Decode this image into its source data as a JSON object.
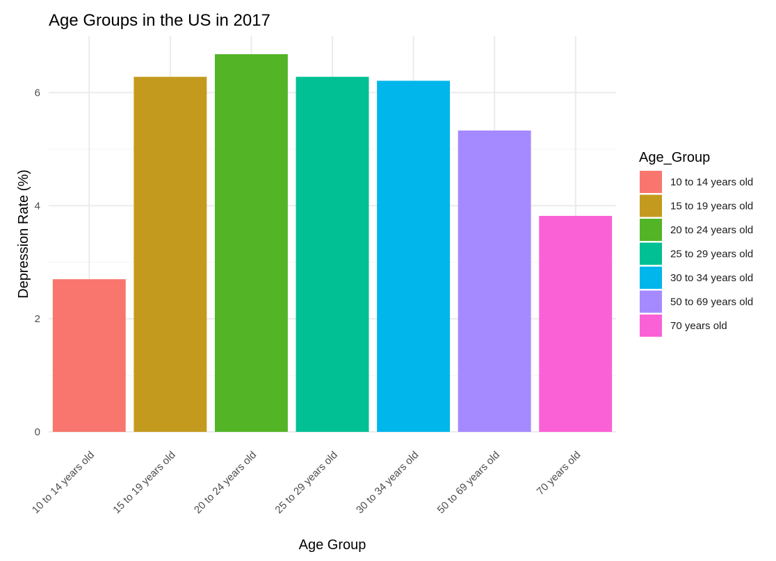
{
  "chart_data": {
    "type": "bar",
    "title": "Age Groups in the US in 2017",
    "xlabel": "Age Group",
    "ylabel": "Depression Rate (%)",
    "ylim": [
      0,
      7
    ],
    "yticks": [
      0,
      2,
      4,
      6
    ],
    "grid": true,
    "legend": {
      "title": "Age_Group",
      "position": "right"
    },
    "categories": [
      "10 to 14 years old",
      "15 to 19 years old",
      "20 to 24 years old",
      "25 to 29 years old",
      "30 to 34 years old",
      "50 to 69 years old",
      "70 years old"
    ],
    "values": [
      2.7,
      6.28,
      6.68,
      6.28,
      6.21,
      5.33,
      3.82
    ],
    "colors": [
      "#F8766D",
      "#C49A1E",
      "#53B426",
      "#00C094",
      "#00B6EB",
      "#A58AFF",
      "#FB61D7"
    ]
  }
}
